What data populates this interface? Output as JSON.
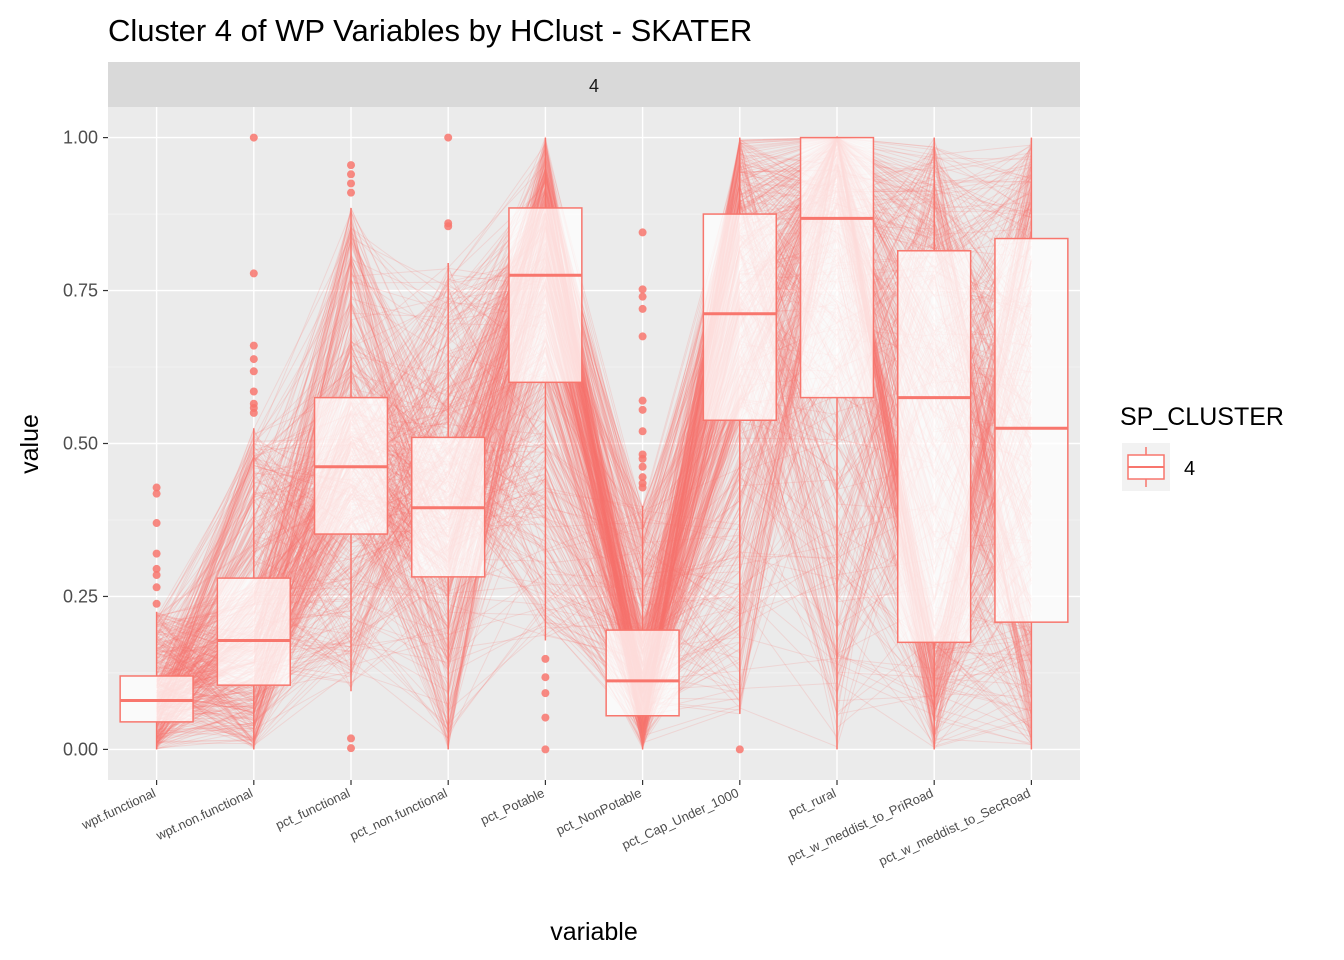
{
  "chart_data": {
    "type": "box+parallel-lines",
    "title": "Cluster 4 of WP Variables by HClust - SKATER",
    "facet_label": "4",
    "xlabel": "variable",
    "ylabel": "value",
    "ylim": [
      -0.05,
      1.05
    ],
    "y_ticks": [
      "0.00",
      "0.25",
      "0.50",
      "0.75",
      "1.00"
    ],
    "y_tick_values": [
      0,
      0.25,
      0.5,
      0.75,
      1.0
    ],
    "grid": true,
    "legend": {
      "title": "SP_CLUSTER",
      "labels": [
        "4"
      ],
      "placement": "right"
    },
    "color": "#F8766D",
    "categories": [
      "wpt.functional",
      "wpt.non.functional",
      "pct_functional",
      "pct_non.functional",
      "pct_Potable",
      "pct_NonPotable",
      "pct_Cap_Under_1000",
      "pct_rural",
      "pct_w_meddist_to_PriRoad",
      "pct_w_meddist_to_SecRoad"
    ],
    "boxes": [
      {
        "q1": 0.045,
        "median": 0.08,
        "q3": 0.12,
        "whisker_low": 0.0,
        "whisker_high": 0.225,
        "outliers": [
          0.428,
          0.418,
          0.37,
          0.32,
          0.295,
          0.285,
          0.265,
          0.238
        ]
      },
      {
        "q1": 0.105,
        "median": 0.178,
        "q3": 0.28,
        "whisker_low": 0.0,
        "whisker_high": 0.525,
        "outliers": [
          1.0,
          0.778,
          0.66,
          0.638,
          0.618,
          0.585,
          0.565,
          0.558,
          0.55
        ]
      },
      {
        "q1": 0.352,
        "median": 0.462,
        "q3": 0.575,
        "whisker_low": 0.095,
        "whisker_high": 0.885,
        "outliers": [
          0.955,
          0.94,
          0.925,
          0.91,
          0.018,
          0.002
        ]
      },
      {
        "q1": 0.282,
        "median": 0.395,
        "q3": 0.51,
        "whisker_low": 0.0,
        "whisker_high": 0.795,
        "outliers": [
          1.0,
          0.86,
          0.855
        ]
      },
      {
        "q1": 0.6,
        "median": 0.775,
        "q3": 0.885,
        "whisker_low": 0.178,
        "whisker_high": 1.0,
        "outliers": [
          0.148,
          0.118,
          0.092,
          0.052,
          0.0
        ]
      },
      {
        "q1": 0.055,
        "median": 0.112,
        "q3": 0.195,
        "whisker_low": 0.0,
        "whisker_high": 0.398,
        "outliers": [
          0.845,
          0.752,
          0.74,
          0.72,
          0.675,
          0.57,
          0.555,
          0.52,
          0.482,
          0.475,
          0.462,
          0.445,
          0.435,
          0.428
        ]
      },
      {
        "q1": 0.538,
        "median": 0.712,
        "q3": 0.875,
        "whisker_low": 0.058,
        "whisker_high": 1.0,
        "outliers": [
          0.0
        ]
      },
      {
        "q1": 0.575,
        "median": 0.868,
        "q3": 1.0,
        "whisker_low": 0.0,
        "whisker_high": 1.0,
        "outliers": []
      },
      {
        "q1": 0.175,
        "median": 0.575,
        "q3": 0.815,
        "whisker_low": 0.0,
        "whisker_high": 1.0,
        "outliers": []
      },
      {
        "q1": 0.208,
        "median": 0.525,
        "q3": 0.835,
        "whisker_low": 0.0,
        "whisker_high": 1.0,
        "outliers": []
      }
    ],
    "parallel_lines_note": "many semi-transparent lines connect each observation across variables"
  }
}
